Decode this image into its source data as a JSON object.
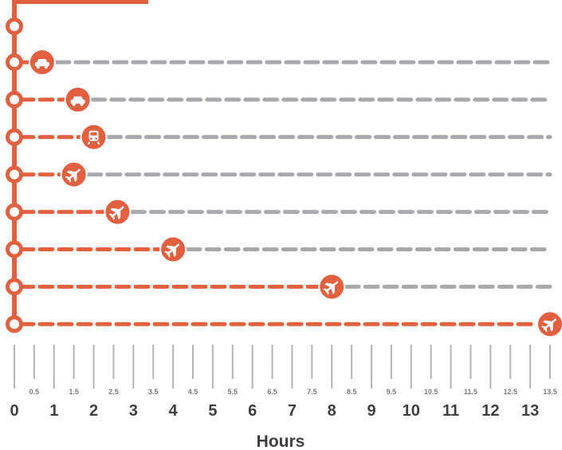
{
  "chart_data": {
    "type": "timeline",
    "xlabel": "Hours",
    "xlim": [
      0,
      13.5
    ],
    "major_ticks": [
      "0",
      "1",
      "2",
      "3",
      "4",
      "5",
      "6",
      "7",
      "8",
      "9",
      "10",
      "11",
      "12",
      "13"
    ],
    "minor_ticks": [
      "0.5",
      "1.5",
      "2.5",
      "3.5",
      "4.5",
      "5.5",
      "6.5",
      "7.5",
      "8.5",
      "9.5",
      "10.5",
      "11.5",
      "12.5",
      "13.5"
    ],
    "rows": [
      {
        "mode": "car-icon",
        "hours": 0.7
      },
      {
        "mode": "car-icon",
        "hours": 1.6
      },
      {
        "mode": "train-icon",
        "hours": 2.0
      },
      {
        "mode": "plane-icon",
        "hours": 1.5
      },
      {
        "mode": "plane-icon",
        "hours": 2.6
      },
      {
        "mode": "plane-icon",
        "hours": 4.0
      },
      {
        "mode": "plane-icon",
        "hours": 8.0
      },
      {
        "mode": "plane-icon",
        "hours": 13.5
      }
    ],
    "grid": false
  },
  "colors": {
    "accent": "#e0603f",
    "remaining": "#a7a9ac",
    "tick_line": "#b4b4b4",
    "text": "#3f3f3f",
    "minor_text": "#7a7a7a"
  }
}
